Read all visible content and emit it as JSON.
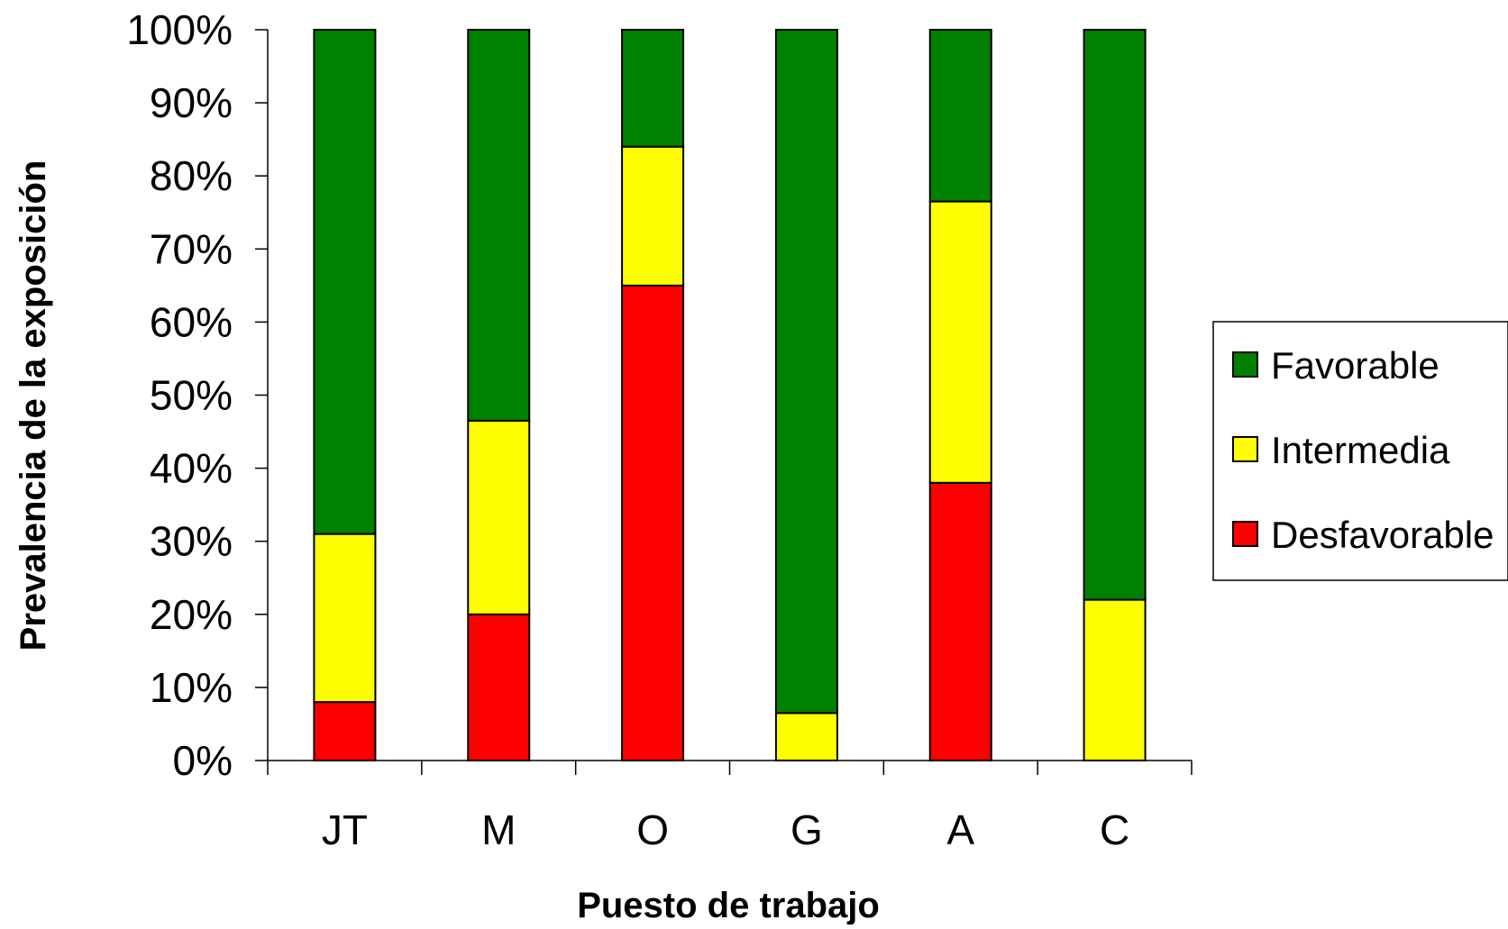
{
  "chart_data": {
    "type": "bar",
    "stacked": true,
    "categories": [
      "JT",
      "M",
      "O",
      "G",
      "A",
      "C"
    ],
    "series": [
      {
        "name": "Desfavorable",
        "color": "#FF0000",
        "values": [
          8,
          20,
          65,
          0,
          38,
          0
        ]
      },
      {
        "name": "Intermedia",
        "color": "#FFFF00",
        "values": [
          23,
          26.5,
          19,
          6.5,
          38.5,
          22
        ]
      },
      {
        "name": "Favorable",
        "color": "#008000",
        "values": [
          69,
          53.5,
          16,
          93.5,
          23.5,
          78
        ]
      }
    ],
    "xlabel": "Puesto de trabajo",
    "ylabel": "Prevalencia de la exposición",
    "ylim": [
      0,
      100
    ],
    "yticks": [
      "0%",
      "10%",
      "20%",
      "30%",
      "40%",
      "50%",
      "60%",
      "70%",
      "80%",
      "90%",
      "100%"
    ],
    "legend_order": [
      "Favorable",
      "Intermedia",
      "Desfavorable"
    ],
    "legend_position": "right",
    "grid": false
  }
}
